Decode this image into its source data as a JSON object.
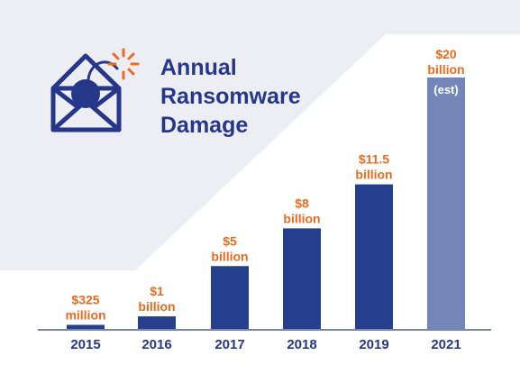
{
  "title_lines": [
    "Annual",
    "Ransomware",
    "Damage"
  ],
  "colors": {
    "background_band": "#eceef4",
    "bar": "#263f8c",
    "bar_estimate": "#7486b8",
    "value_label": "#ea6a1f",
    "title": "#26378a",
    "tick_label": "#26378a",
    "axis": "#7486b8",
    "icon": "#26378a",
    "spark": "#ea6a1f"
  },
  "icon": "envelope-bomb-icon",
  "chart_data": {
    "type": "bar",
    "title": "Annual Ransomware Damage",
    "xlabel": "",
    "ylabel": "",
    "unit": "USD",
    "categories": [
      "2015",
      "2016",
      "2017",
      "2018",
      "2019",
      "2021"
    ],
    "values": [
      0.325,
      1,
      5,
      8,
      11.5,
      20
    ],
    "value_labels": [
      [
        "$325",
        "million"
      ],
      [
        "$1",
        "billion"
      ],
      [
        "$5",
        "billion"
      ],
      [
        "$8",
        "billion"
      ],
      [
        "$11.5",
        "billion"
      ],
      [
        "$20",
        "billion"
      ]
    ],
    "estimate_index": 5,
    "estimate_note": "(est)",
    "ylim": [
      0,
      20
    ],
    "grid": false,
    "legend": "none"
  }
}
